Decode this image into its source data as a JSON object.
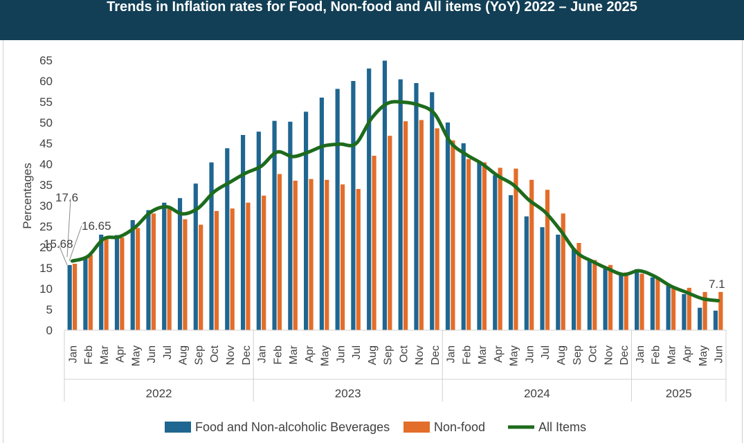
{
  "chart_data": {
    "type": "bar",
    "title": "Trends in Inflation rates for Food, Non-food and All items (YoY) 2022 – June 2025",
    "ylabel": "Percentages",
    "xlabel": "",
    "ylim": [
      0,
      65
    ],
    "yticks": [
      "0",
      "5",
      "10",
      "15",
      "20",
      "25",
      "30",
      "35",
      "40",
      "45",
      "50",
      "55",
      "60",
      "65"
    ],
    "gridlines": false,
    "legend_position": "bottom",
    "years": [
      {
        "label": "2022",
        "months": [
          "Jan",
          "Feb",
          "Mar",
          "Apr",
          "May",
          "Jun",
          "Jul",
          "Aug",
          "Sep",
          "Oct",
          "Nov",
          "Dec"
        ]
      },
      {
        "label": "2023",
        "months": [
          "Jan",
          "Feb",
          "Mar",
          "Apr",
          "May",
          "Jun",
          "Jul",
          "Aug",
          "Sep",
          "Oct",
          "Nov",
          "Dec"
        ]
      },
      {
        "label": "2024",
        "months": [
          "Jan",
          "Feb",
          "Mar",
          "Apr",
          "May",
          "Jun",
          "Jul",
          "Aug",
          "Sep",
          "Oct",
          "Nov",
          "Dec"
        ]
      },
      {
        "label": "2025",
        "months": [
          "Jan",
          "Feb",
          "Mar",
          "Apr",
          "May",
          "Jun"
        ]
      }
    ],
    "series": [
      {
        "name": "Food and Non-alcoholic Beverages",
        "type": "bar",
        "color": "#1f6690",
        "values": [
          15.68,
          17.6,
          23.0,
          22.9,
          26.5,
          28.9,
          30.7,
          31.8,
          35.3,
          40.4,
          43.8,
          47.0,
          47.8,
          50.4,
          50.2,
          52.6,
          56.0,
          58.1,
          60.0,
          63.0,
          64.9,
          60.4,
          59.5,
          57.3,
          50.0,
          45.0,
          40.5,
          37.3,
          32.5,
          27.4,
          24.8,
          23.0,
          19.7,
          16.8,
          14.8,
          13.4,
          14.7,
          12.7,
          10.7,
          8.7,
          5.4,
          4.7
        ]
      },
      {
        "name": "Non-food",
        "type": "bar",
        "color": "#e36d2a",
        "values": [
          16.0,
          18.1,
          21.9,
          22.3,
          24.6,
          28.1,
          29.5,
          26.7,
          25.4,
          28.7,
          29.3,
          30.7,
          32.4,
          37.6,
          36.0,
          36.4,
          36.2,
          35.1,
          34.0,
          42.0,
          46.8,
          50.3,
          50.6,
          48.6,
          45.7,
          41.2,
          40.4,
          39.1,
          38.9,
          36.2,
          33.8,
          28.1,
          21.0,
          16.9,
          15.7,
          13.9,
          13.6,
          12.8,
          10.1,
          10.2,
          9.2,
          9.2
        ]
      },
      {
        "name": "All Items",
        "type": "line",
        "color": "#1d6b1d",
        "values": [
          16.65,
          17.8,
          22.0,
          22.5,
          24.8,
          28.5,
          29.7,
          28.0,
          29.4,
          33.3,
          35.6,
          37.8,
          39.5,
          42.9,
          41.8,
          42.9,
          44.4,
          44.8,
          44.9,
          51.0,
          54.6,
          54.9,
          54.2,
          52.1,
          45.3,
          42.3,
          40.1,
          37.2,
          35.0,
          31.3,
          28.5,
          24.0,
          18.8,
          16.6,
          14.8,
          13.4,
          14.3,
          12.9,
          10.6,
          9.1,
          7.6,
          7.1
        ]
      }
    ],
    "annotations": [
      {
        "text": "17.6",
        "series": "Food and Non-alcoholic Beverages",
        "index": 1
      },
      {
        "text": "16.65",
        "series": "All Items",
        "index": 0
      },
      {
        "text": "15.68",
        "series": "Food and Non-alcoholic Beverages",
        "index": 0
      },
      {
        "text": "7.1",
        "series": "All Items",
        "index": 41
      }
    ]
  }
}
